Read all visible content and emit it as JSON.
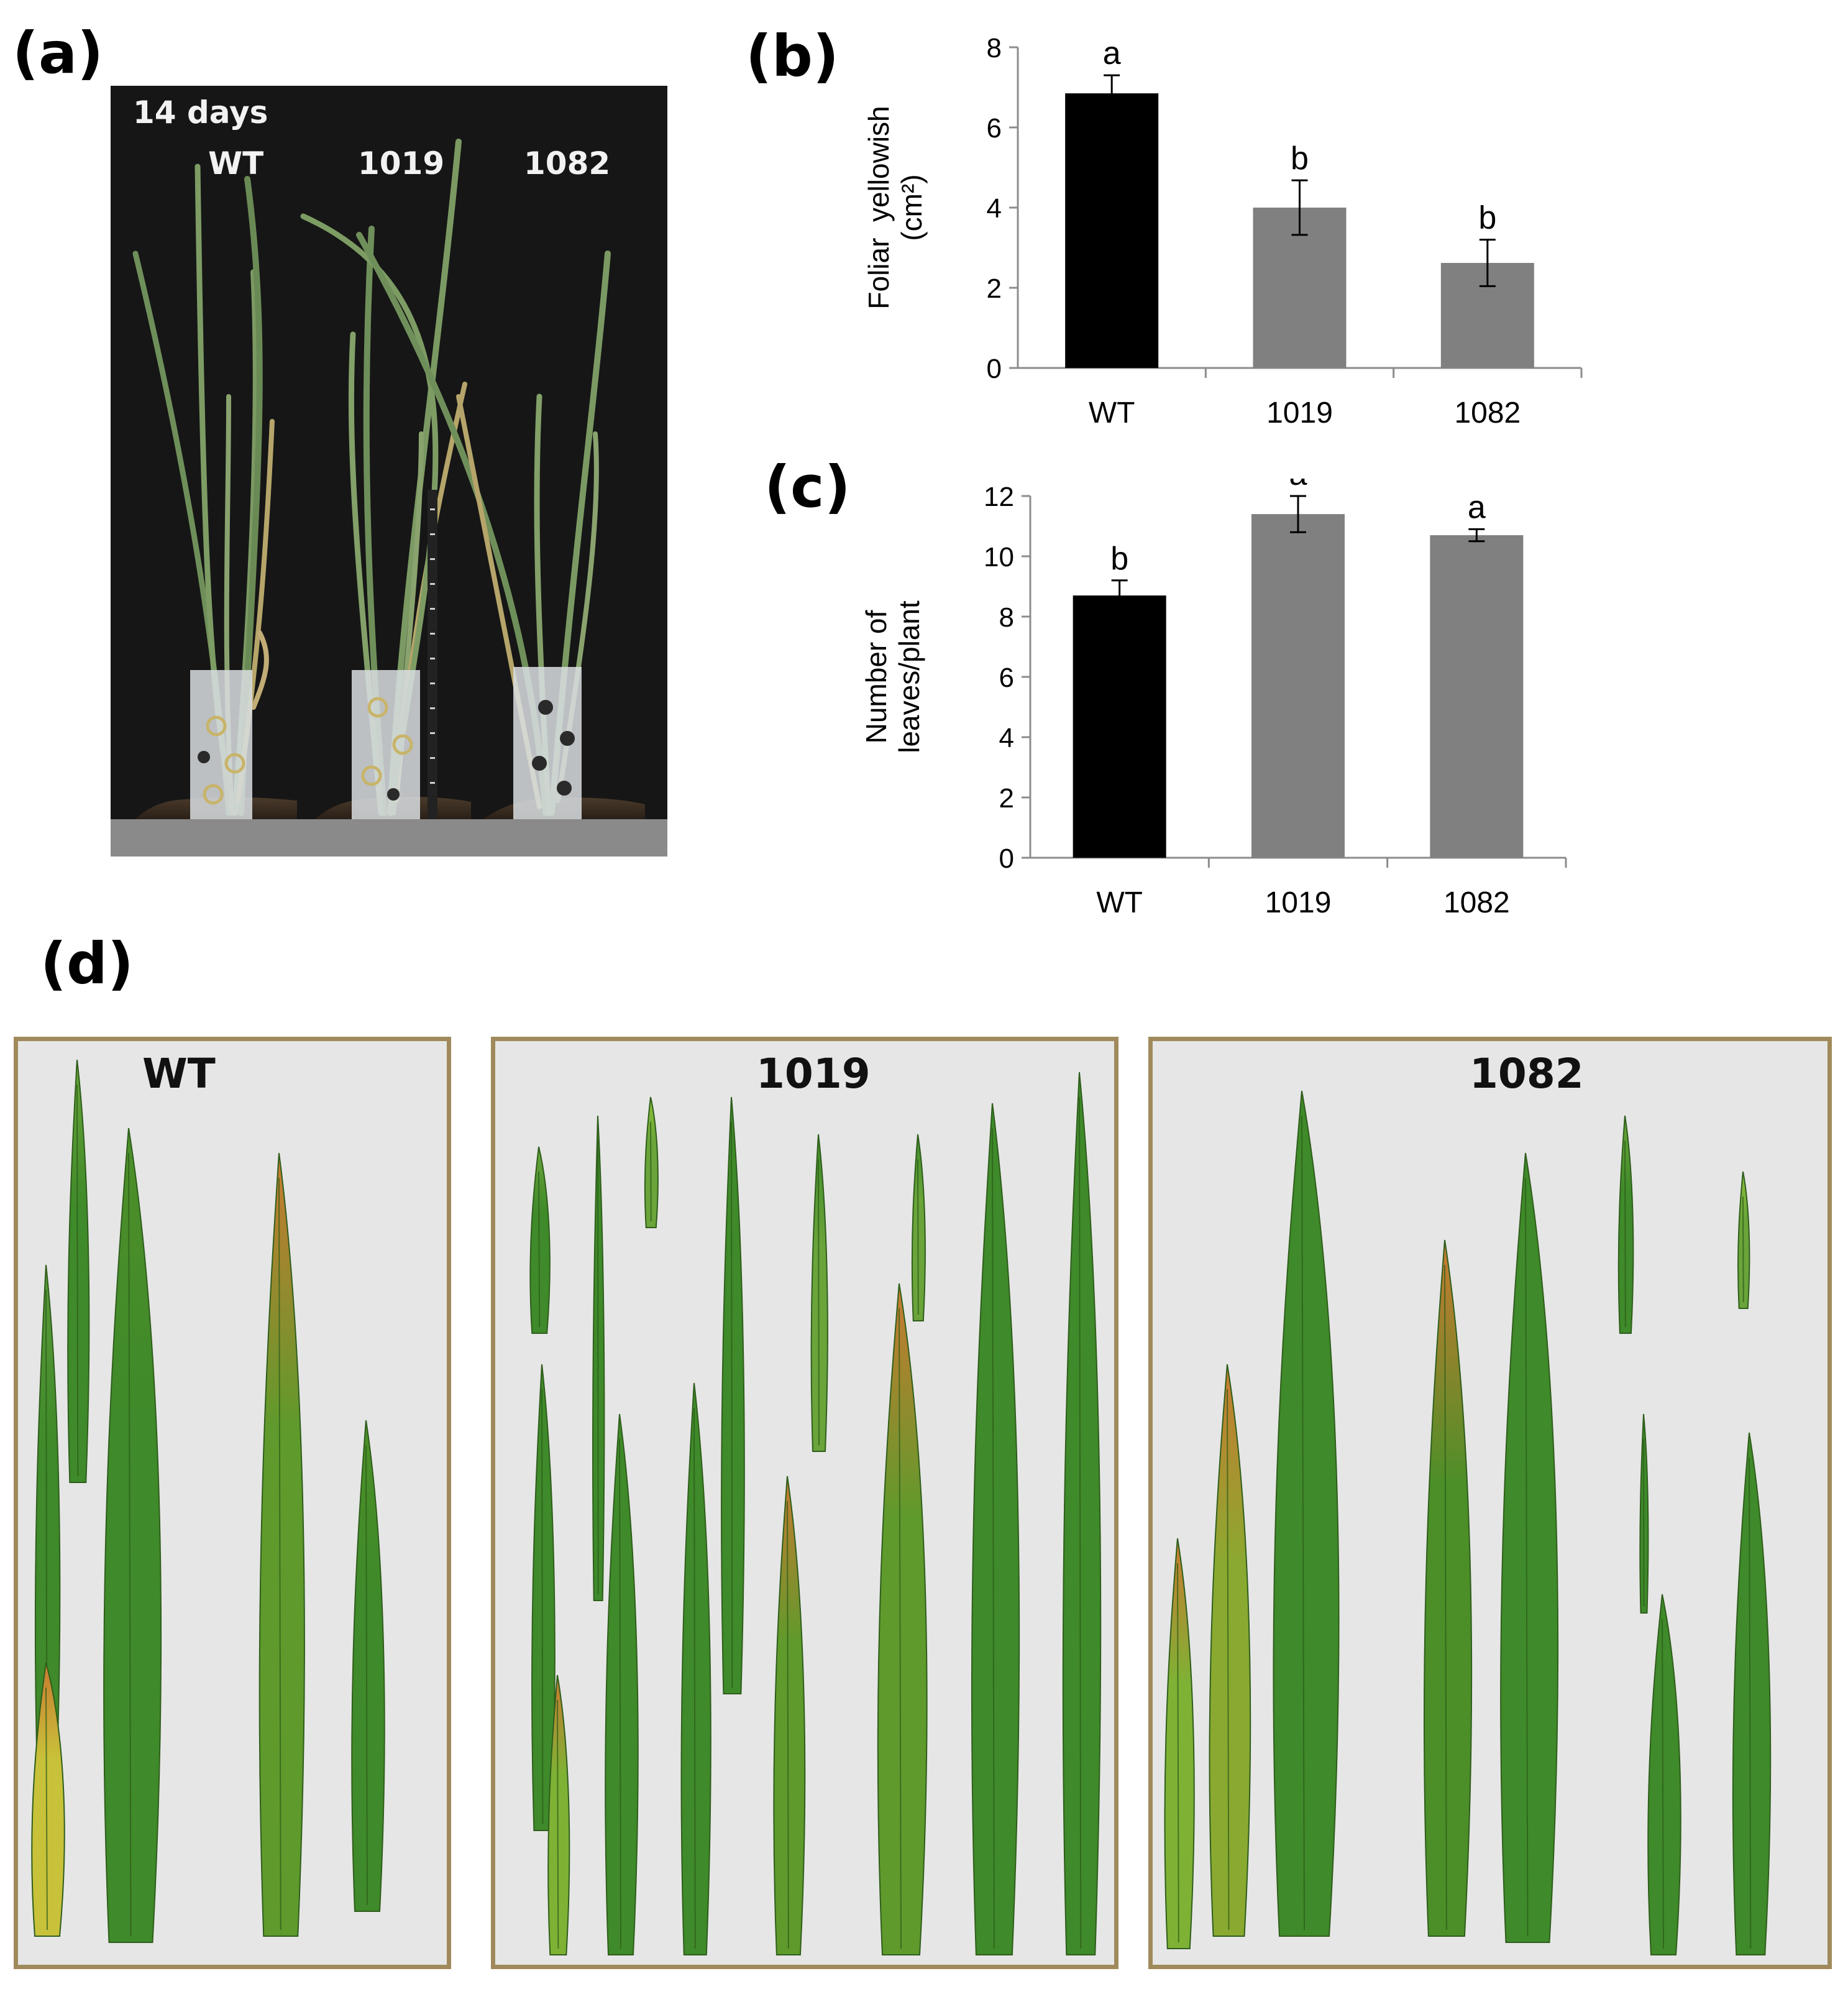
{
  "panels": {
    "a": {
      "letter": "(a)",
      "days_label": "14 days",
      "genotypes": [
        "WT",
        "1019",
        "1082"
      ]
    },
    "b": {
      "letter": "(b)"
    },
    "c": {
      "letter": "(c)"
    },
    "d": {
      "letter": "(d)",
      "box_titles": [
        "WT",
        "1019",
        "1082"
      ]
    }
  },
  "colors": {
    "wt_bar": "#000000",
    "mutant_bar": "#808080",
    "axis": "#8c8c8c",
    "box_border": "#a08a5c",
    "box_background": "#e6e6e6"
  },
  "chart_data": [
    {
      "panel": "b",
      "type": "bar",
      "categories": [
        "WT",
        "1019",
        "1082"
      ],
      "values": [
        6.85,
        4.0,
        2.62
      ],
      "errors": [
        0.45,
        0.68,
        0.58
      ],
      "significance": [
        "a",
        "b",
        "b"
      ],
      "bar_colors": [
        "#000000",
        "#808080",
        "#808080"
      ],
      "ylabel_lines": [
        "Foliar  yellowish",
        "(cm²)"
      ],
      "ylim": [
        0,
        8
      ],
      "yticks": [
        0,
        2,
        4,
        6,
        8
      ],
      "grid": false
    },
    {
      "panel": "c",
      "type": "bar",
      "categories": [
        "WT",
        "1019",
        "1082"
      ],
      "values": [
        8.7,
        11.4,
        10.7
      ],
      "errors": [
        0.5,
        0.6,
        0.2
      ],
      "significance": [
        "b",
        "a",
        "a"
      ],
      "bar_colors": [
        "#000000",
        "#808080",
        "#808080"
      ],
      "ylabel_lines": [
        "Number of",
        "leaves/plant"
      ],
      "ylim": [
        0,
        12
      ],
      "yticks": [
        0,
        2,
        4,
        6,
        8,
        10,
        12
      ],
      "grid": false
    }
  ]
}
